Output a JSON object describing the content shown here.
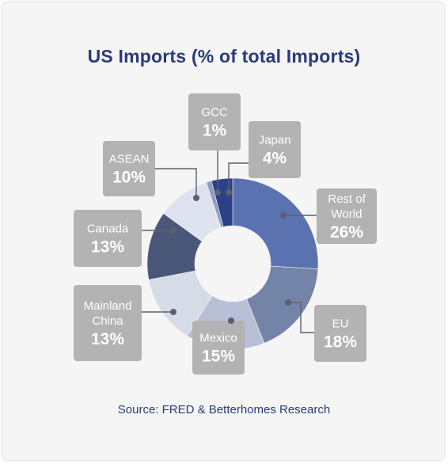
{
  "chart_data": {
    "type": "pie",
    "title": "US Imports (% of total Imports)",
    "source": "Source: FRED & Betterhomes Research",
    "slices": [
      {
        "name": "Rest of World",
        "lines": [
          "Rest of",
          "World"
        ],
        "value": 26,
        "label": "26%",
        "color": "#5b72b0"
      },
      {
        "name": "EU",
        "lines": [
          "EU"
        ],
        "value": 18,
        "label": "18%",
        "color": "#7483a8"
      },
      {
        "name": "Mexico",
        "lines": [
          "Mexico"
        ],
        "value": 15,
        "label": "15%",
        "color": "#b7bfd6"
      },
      {
        "name": "Mainland China",
        "lines": [
          "Mainland",
          "China"
        ],
        "value": 13,
        "label": "13%",
        "color": "#d6dbe8"
      },
      {
        "name": "Canada",
        "lines": [
          "Canada"
        ],
        "value": 13,
        "label": "13%",
        "color": "#4a5778"
      },
      {
        "name": "ASEAN",
        "lines": [
          "ASEAN"
        ],
        "value": 10,
        "label": "10%",
        "color": "#dfe3ef"
      },
      {
        "name": "GCC",
        "lines": [
          "GCC"
        ],
        "value": 1,
        "label": "1%",
        "color": "#8f9dc4"
      },
      {
        "name": "Japan",
        "lines": [
          "Japan"
        ],
        "value": 4,
        "label": "4%",
        "color": "#2a4087"
      }
    ],
    "label_box_color": "#b3b3b3",
    "connector_color": "#5a6070",
    "legend": "callout labels"
  }
}
